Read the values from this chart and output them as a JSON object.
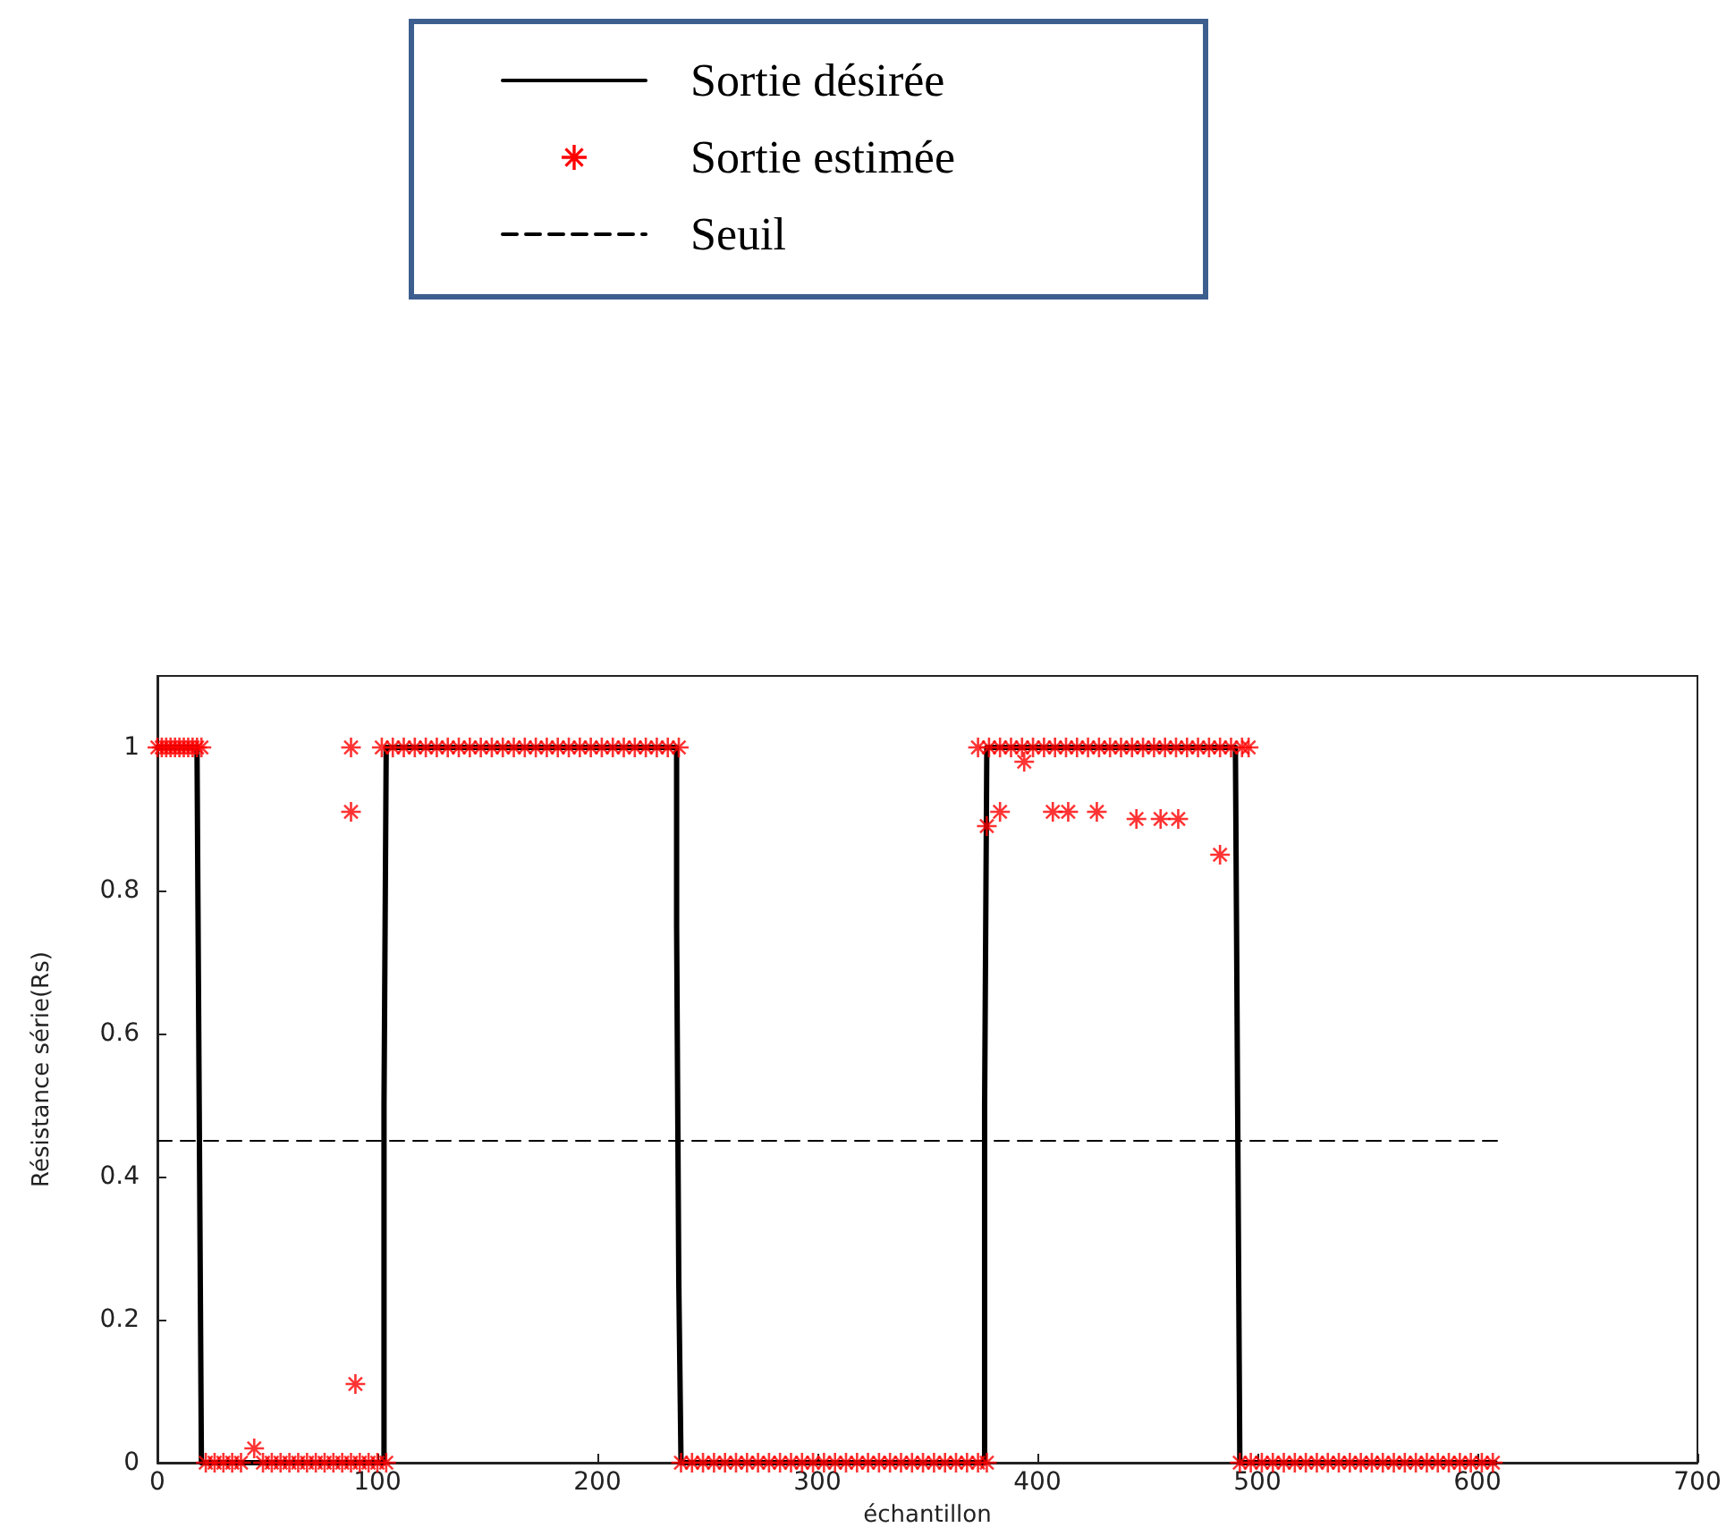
{
  "chart_data": {
    "type": "line",
    "xlabel": "échantillon",
    "ylabel": "Résistance série(Rs)",
    "xlim": [
      0,
      700
    ],
    "xticks": [
      0,
      100,
      200,
      300,
      400,
      500,
      600,
      700
    ],
    "ylim": [
      0,
      1.1
    ],
    "yticks": [
      0,
      0.2,
      0.4,
      0.6,
      0.8,
      1
    ],
    "grid": false,
    "legend": "top",
    "series": [
      {
        "name": "Sortie désirée",
        "color": "#000000",
        "line_style": "solid",
        "marker": "none",
        "x": [
          0,
          18,
          19,
          20,
          103,
          103,
          104,
          236,
          236,
          237,
          238,
          376,
          376,
          377,
          490,
          491,
          492,
          608
        ],
        "values": [
          1,
          1,
          0.5,
          0,
          0,
          0.5,
          1,
          1,
          0.75,
          0.25,
          0,
          0,
          0.5,
          1,
          1,
          0.5,
          0,
          0
        ]
      },
      {
        "name": "Sortie estimée",
        "type": "scatter",
        "color": "#ff0000",
        "marker": "star",
        "x": [
          0,
          2,
          4,
          6,
          8,
          10,
          12,
          14,
          16,
          18,
          20,
          22,
          26,
          30,
          34,
          38,
          44,
          48,
          52,
          56,
          60,
          64,
          68,
          72,
          76,
          80,
          84,
          88,
          92,
          96,
          100,
          104,
          88,
          88,
          90,
          102,
          107,
          112,
          117,
          122,
          127,
          132,
          137,
          142,
          147,
          152,
          157,
          162,
          167,
          172,
          177,
          182,
          187,
          192,
          197,
          202,
          207,
          212,
          217,
          222,
          227,
          232,
          237,
          238,
          243,
          248,
          253,
          258,
          263,
          268,
          273,
          278,
          283,
          288,
          293,
          298,
          303,
          308,
          313,
          318,
          323,
          328,
          333,
          338,
          343,
          348,
          353,
          358,
          363,
          368,
          373,
          377,
          373,
          378,
          383,
          388,
          393,
          398,
          403,
          408,
          413,
          418,
          423,
          428,
          433,
          438,
          443,
          448,
          453,
          458,
          463,
          468,
          473,
          478,
          483,
          488,
          493,
          496,
          377,
          383,
          394,
          407,
          414,
          427,
          445,
          456,
          464,
          483,
          492,
          497,
          502,
          507,
          512,
          517,
          522,
          527,
          532,
          537,
          542,
          547,
          552,
          557,
          562,
          567,
          572,
          577,
          582,
          587,
          592,
          597,
          602,
          607
        ],
        "values": [
          1,
          1,
          1,
          1,
          1,
          1,
          1,
          1,
          1,
          1,
          1,
          0,
          0,
          0,
          0,
          0,
          0.02,
          0,
          0,
          0,
          0,
          0,
          0,
          0,
          0,
          0,
          0,
          0,
          0,
          0,
          0,
          0,
          1,
          0.91,
          0.11,
          1,
          1,
          1,
          1,
          1,
          1,
          1,
          1,
          1,
          1,
          1,
          1,
          1,
          1,
          1,
          1,
          1,
          1,
          1,
          1,
          1,
          1,
          1,
          1,
          1,
          1,
          1,
          1,
          0,
          0,
          0,
          0,
          0,
          0,
          0,
          0,
          0,
          0,
          0,
          0,
          0,
          0,
          0,
          0,
          0,
          0,
          0,
          0,
          0,
          0,
          0,
          0,
          0,
          0,
          0,
          0,
          0,
          1,
          1,
          1,
          1,
          1,
          1,
          1,
          1,
          1,
          1,
          1,
          1,
          1,
          1,
          1,
          1,
          1,
          1,
          1,
          1,
          1,
          1,
          1,
          1,
          1,
          1,
          0.89,
          0.91,
          0.98,
          0.91,
          0.91,
          0.91,
          0.9,
          0.9,
          0.9,
          0.85,
          0,
          0,
          0,
          0,
          0,
          0,
          0,
          0,
          0,
          0,
          0,
          0,
          0,
          0,
          0,
          0,
          0,
          0,
          0,
          0,
          0,
          0,
          0,
          0
        ]
      },
      {
        "name": "Seuil",
        "color": "#000000",
        "line_style": "dashed",
        "marker": "none",
        "x": [
          0,
          609
        ],
        "values": [
          0.45,
          0.45
        ]
      }
    ]
  }
}
